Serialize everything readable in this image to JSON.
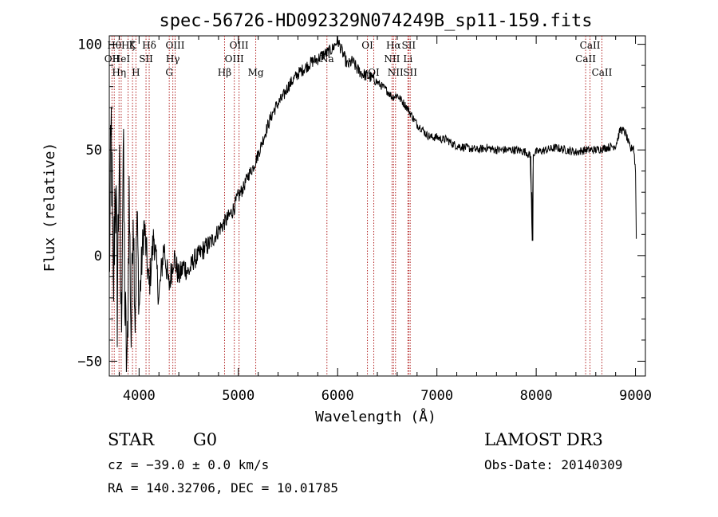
{
  "chart_data": {
    "type": "line",
    "title": "spec-56726-HD092329N074249B_sp11-159.fits",
    "xlabel": "Wavelength (Å)",
    "ylabel": "Flux (relative)",
    "xlim": [
      3700,
      9100
    ],
    "ylim": [
      -57,
      104
    ],
    "xticks": [
      4000,
      5000,
      6000,
      7000,
      8000,
      9000
    ],
    "yticks": [
      -50,
      0,
      50,
      100
    ],
    "xtick_labels": [
      "4000",
      "5000",
      "6000",
      "7000",
      "8000",
      "9000"
    ],
    "ytick_labels": [
      "−50",
      "0",
      "50",
      "100"
    ],
    "grid": false,
    "series": [
      {
        "name": "flux",
        "x": [
          3700,
          3720,
          3740,
          3760,
          3780,
          3800,
          3820,
          3840,
          3860,
          3880,
          3900,
          3920,
          3940,
          3960,
          3980,
          4000,
          4050,
          4100,
          4150,
          4200,
          4250,
          4300,
          4350,
          4400,
          4450,
          4500,
          4550,
          4600,
          4650,
          4700,
          4750,
          4800,
          4850,
          4900,
          4950,
          5000,
          5050,
          5100,
          5150,
          5200,
          5250,
          5300,
          5350,
          5400,
          5450,
          5500,
          5550,
          5600,
          5650,
          5700,
          5750,
          5800,
          5850,
          5900,
          5950,
          6000,
          6050,
          6100,
          6150,
          6200,
          6250,
          6300,
          6350,
          6400,
          6450,
          6500,
          6550,
          6600,
          6650,
          6700,
          6750,
          6800,
          6850,
          6900,
          6950,
          7000,
          7050,
          7100,
          7150,
          7200,
          7300,
          7400,
          7500,
          7600,
          7700,
          7800,
          7900,
          7940,
          7950,
          7960,
          7970,
          8000,
          8100,
          8200,
          8300,
          8400,
          8500,
          8600,
          8700,
          8800,
          8850,
          8900,
          8950,
          8980,
          9000,
          9010
        ],
        "y": [
          -10,
          60,
          -25,
          40,
          -20,
          45,
          -35,
          50,
          -30,
          -57,
          30,
          -40,
          25,
          -30,
          20,
          -25,
          15,
          -15,
          10,
          -20,
          5,
          -15,
          0,
          -10,
          -5,
          -8,
          -2,
          0,
          3,
          5,
          8,
          12,
          15,
          18,
          22,
          28,
          32,
          38,
          42,
          48,
          55,
          62,
          68,
          72,
          75,
          80,
          83,
          86,
          88,
          90,
          92,
          93,
          95,
          96,
          98,
          102,
          96,
          90,
          92,
          88,
          86,
          85,
          84,
          82,
          80,
          78,
          75,
          76,
          73,
          70,
          66,
          62,
          60,
          57,
          56,
          56,
          55,
          55,
          53,
          52,
          51,
          50,
          51,
          50,
          50,
          50,
          49,
          47,
          30,
          7,
          48,
          49,
          50,
          51,
          50,
          49,
          50,
          50,
          51,
          52,
          60,
          58,
          50,
          52,
          40,
          0
        ],
        "noise_amplitude": [
          30,
          30,
          30,
          30,
          30,
          28,
          28,
          28,
          25,
          22,
          20,
          18,
          16,
          15,
          14,
          12,
          10,
          9,
          9,
          8,
          8,
          7,
          7,
          6,
          6,
          5,
          5,
          5,
          5,
          5,
          4,
          4,
          4,
          4,
          4,
          4,
          3,
          3,
          3,
          3,
          3,
          3,
          3,
          3,
          3,
          3,
          3,
          3,
          3,
          3,
          3,
          3,
          3,
          3,
          3,
          3,
          3,
          3,
          3,
          3,
          3,
          3,
          3,
          2,
          2,
          2,
          2,
          2,
          2,
          2,
          2,
          2,
          2,
          2,
          2,
          2,
          2,
          2,
          2,
          2,
          2,
          2,
          2,
          2,
          2,
          2,
          2,
          2,
          2,
          2,
          2,
          2,
          2,
          2,
          2,
          2,
          2,
          2,
          2,
          2,
          2,
          2,
          2,
          2,
          2,
          0
        ]
      }
    ],
    "lines": [
      {
        "w": 3727,
        "label": "OII",
        "row": 1
      },
      {
        "w": 3750,
        "label": "Hθ",
        "row": 0
      },
      {
        "w": 3798,
        "label": "Hη",
        "row": 2
      },
      {
        "w": 3820,
        "label": "HeI",
        "row": 1
      },
      {
        "w": 3889,
        "label": "Hζ",
        "row": 0
      },
      {
        "w": 3934,
        "label": "K",
        "row": 0
      },
      {
        "w": 3968,
        "label": "H",
        "row": 2
      },
      {
        "w": 4070,
        "label": "SII",
        "row": 1
      },
      {
        "w": 4102,
        "label": "Hδ",
        "row": 0
      },
      {
        "w": 4304,
        "label": "G",
        "row": 2
      },
      {
        "w": 4340,
        "label": "Hγ",
        "row": 1
      },
      {
        "w": 4363,
        "label": "OIII",
        "row": 0
      },
      {
        "w": 4861,
        "label": "Hβ",
        "row": 2
      },
      {
        "w": 4959,
        "label": "OIII",
        "row": 1
      },
      {
        "w": 5007,
        "label": "OIII",
        "row": 0
      },
      {
        "w": 5175,
        "label": "Mg",
        "row": 2
      },
      {
        "w": 5892,
        "label": "Na",
        "row": 1
      },
      {
        "w": 6300,
        "label": "OI",
        "row": 0
      },
      {
        "w": 6364,
        "label": "OI",
        "row": 2
      },
      {
        "w": 6548,
        "label": "NII",
        "row": 1
      },
      {
        "w": 6563,
        "label": "Hα",
        "row": 0
      },
      {
        "w": 6583,
        "label": "NII",
        "row": 2
      },
      {
        "w": 6708,
        "label": "Li",
        "row": 1
      },
      {
        "w": 6716,
        "label": "SII",
        "row": 0
      },
      {
        "w": 6731,
        "label": "SII",
        "row": 2
      },
      {
        "w": 8498,
        "label": "CaII",
        "row": 1
      },
      {
        "w": 8542,
        "label": "CaII",
        "row": 0
      },
      {
        "w": 8662,
        "label": "CaII",
        "row": 2
      }
    ]
  },
  "info": {
    "object_class": "STAR",
    "subclass": "G0",
    "redshift": "cz = −39.0 ± 0.0 km/s",
    "coords": "RA = 140.32706, DEC =  10.01785",
    "survey": "LAMOST DR3",
    "obs_date": "Obs-Date: 20140309"
  }
}
